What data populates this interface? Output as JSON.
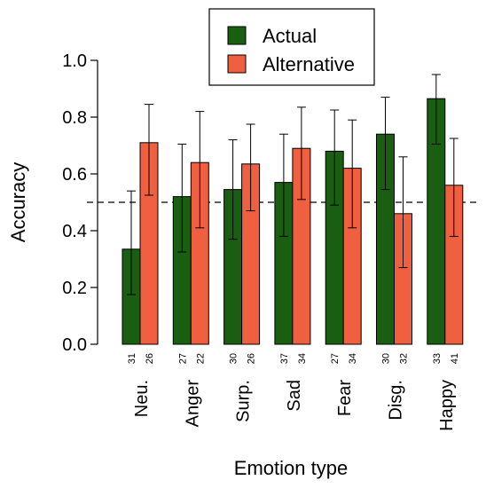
{
  "chart_data": {
    "type": "bar",
    "xlabel": "Emotion type",
    "ylabel": "Accuracy",
    "ylim": [
      0,
      1
    ],
    "yticks": [
      "0.0",
      "0.2",
      "0.4",
      "0.6",
      "0.8",
      "1.0"
    ],
    "reference_line": 0.5,
    "legend_position": "top-center",
    "categories": [
      "Neu.",
      "Anger",
      "Surp.",
      "Sad",
      "Fear",
      "Disg.",
      "Happy"
    ],
    "series": [
      {
        "name": "Actual",
        "color": "#1a5e12",
        "values": [
          0.335,
          0.52,
          0.545,
          0.57,
          0.68,
          0.74,
          0.865
        ],
        "err_low": [
          0.175,
          0.325,
          0.37,
          0.38,
          0.49,
          0.545,
          0.705
        ],
        "err_high": [
          0.54,
          0.705,
          0.72,
          0.74,
          0.825,
          0.87,
          0.95
        ],
        "n": [
          "31",
          "27",
          "30",
          "37",
          "27",
          "30",
          "33"
        ]
      },
      {
        "name": "Alternative",
        "color": "#f06040",
        "values": [
          0.71,
          0.64,
          0.635,
          0.69,
          0.62,
          0.46,
          0.56
        ],
        "err_low": [
          0.525,
          0.41,
          0.47,
          0.51,
          0.41,
          0.27,
          0.38
        ],
        "err_high": [
          0.845,
          0.82,
          0.775,
          0.835,
          0.79,
          0.66,
          0.725
        ],
        "n": [
          "26",
          "22",
          "26",
          "34",
          "34",
          "32",
          "41"
        ]
      }
    ]
  }
}
